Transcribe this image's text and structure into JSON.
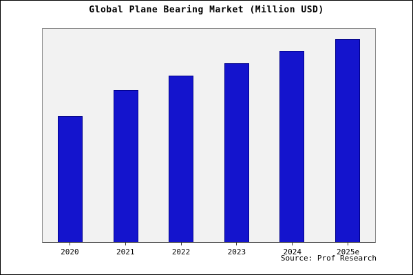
{
  "title": "Global Plane Bearing Market (Million USD)",
  "source": "Source: Prof Research",
  "chart_data": {
    "type": "bar",
    "title": "Global Plane Bearing Market (Million USD)",
    "categories": [
      "2020",
      "2021",
      "2022",
      "2023",
      "2024",
      "2025e"
    ],
    "values": [
      62,
      75,
      82,
      88,
      94,
      100
    ],
    "xlabel": "",
    "ylabel": "",
    "ylim": [
      0,
      105
    ],
    "grid": false,
    "legend": "none",
    "bar_color": "#1414cd",
    "bar_border_color": "#00008b",
    "plot_background": "#f2f2f2",
    "source_label": "Source: Prof Research"
  }
}
